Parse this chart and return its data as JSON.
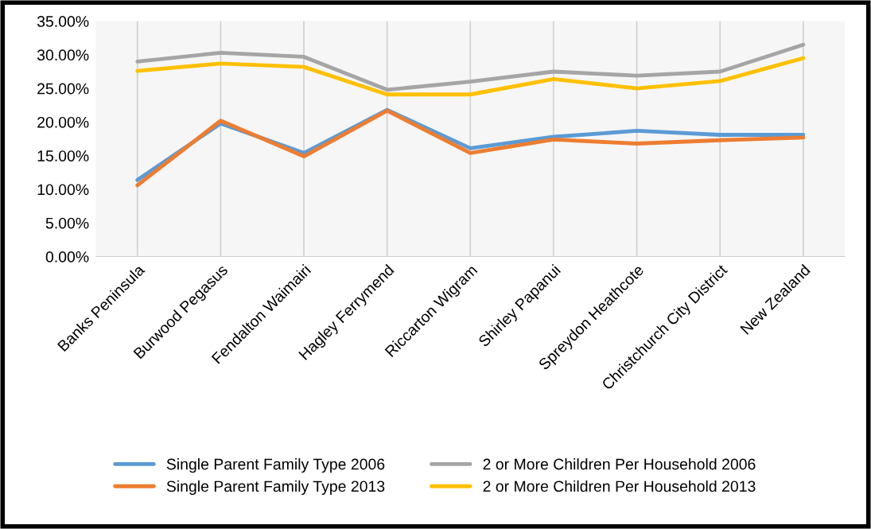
{
  "chart_data": {
    "type": "line",
    "categories": [
      "Banks Peninsula",
      "Burwood Pegasus",
      "Fendalton Waimairi",
      "Hagley Ferrymend",
      "Riccarton Wigram",
      "Shirley Papanui",
      "Spreydon Heathcote",
      "Christchurch City District",
      "New Zealand"
    ],
    "series": [
      {
        "name": "Single Parent Family Type 2006",
        "color": "#5b9bd5",
        "values": [
          11.4,
          19.8,
          15.4,
          21.8,
          16.1,
          17.8,
          18.7,
          18.1,
          18.1
        ]
      },
      {
        "name": "Single Parent Family Type 2013",
        "color": "#ed7d31",
        "values": [
          10.6,
          20.2,
          14.9,
          21.7,
          15.4,
          17.4,
          16.8,
          17.3,
          17.7
        ]
      },
      {
        "name": "2 or More Children Per Household 2006",
        "color": "#a5a5a5",
        "values": [
          29.0,
          30.3,
          29.7,
          24.8,
          26.0,
          27.5,
          26.9,
          27.5,
          31.5
        ]
      },
      {
        "name": "2 or More Children Per Household 2013",
        "color": "#ffc000",
        "values": [
          27.6,
          28.7,
          28.2,
          24.1,
          24.1,
          26.4,
          25.0,
          26.1,
          29.5
        ]
      }
    ],
    "ylim": [
      0,
      35
    ],
    "yticks": [
      {
        "value": 0,
        "label": "0.00%"
      },
      {
        "value": 5,
        "label": "5.00%"
      },
      {
        "value": 10,
        "label": "10.00%"
      },
      {
        "value": 15,
        "label": "15.00%"
      },
      {
        "value": 20,
        "label": "20.00%"
      },
      {
        "value": 25,
        "label": "25.00%"
      },
      {
        "value": 30,
        "label": "30.00%"
      },
      {
        "value": 35,
        "label": "35.00%"
      }
    ],
    "grid": "x",
    "legend": "bottom",
    "marker": "none",
    "line_style": "solid"
  }
}
